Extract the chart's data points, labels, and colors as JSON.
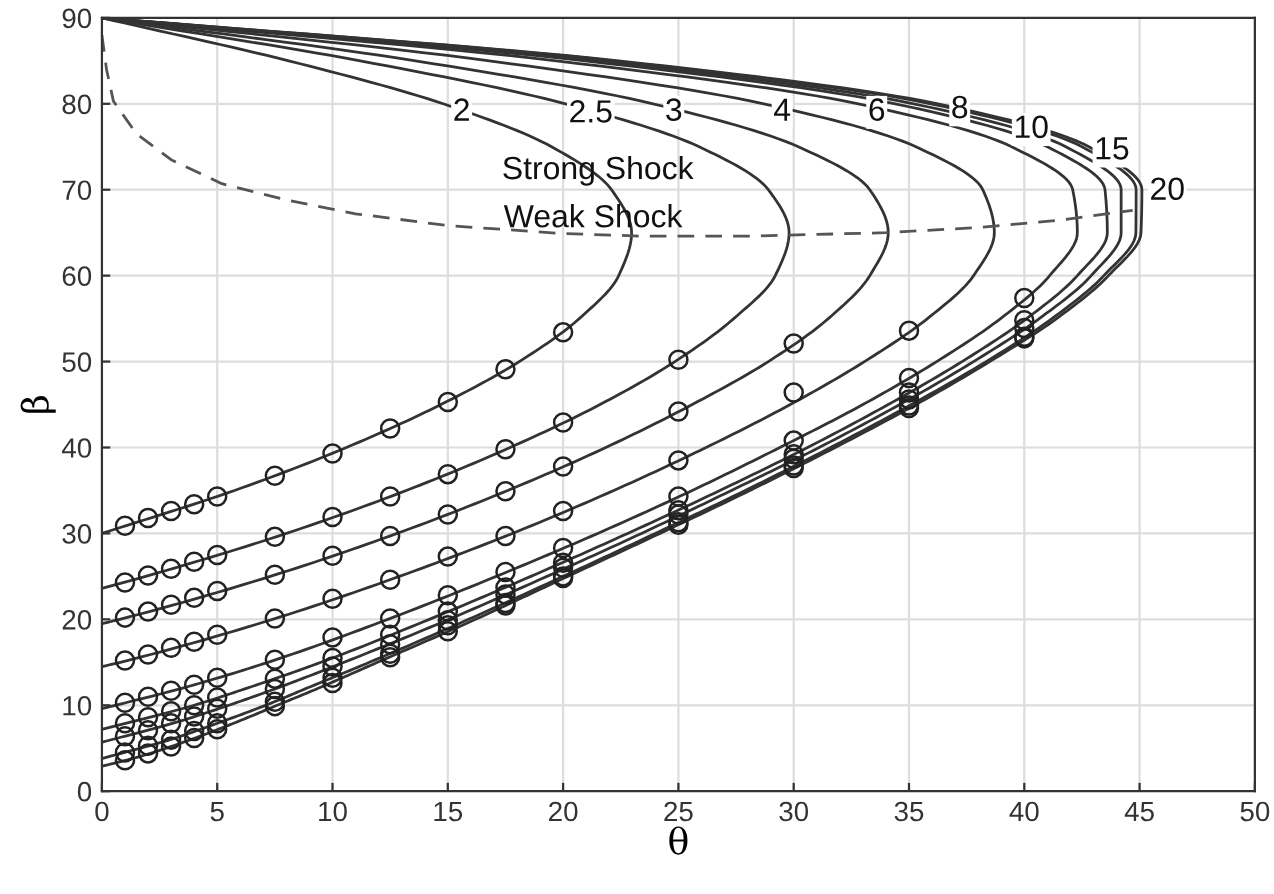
{
  "chart_data": {
    "type": "line",
    "xlabel": "θ",
    "ylabel": "β",
    "xlim": [
      0,
      50
    ],
    "ylim": [
      0,
      90
    ],
    "xticks": [
      0,
      5,
      10,
      15,
      20,
      25,
      30,
      35,
      40,
      45,
      50
    ],
    "yticks": [
      0,
      10,
      20,
      30,
      40,
      50,
      60,
      70,
      80,
      90
    ],
    "grid": true,
    "legend": false,
    "series": [
      {
        "color": "#333333",
        "x": [
          0,
          5.75,
          10.6,
          14.7,
          18.1,
          20.7,
          22.41,
          22.97,
          22.1,
          19.5,
          14.8,
          8.1,
          0
        ],
        "values": [
          30,
          35,
          40,
          45,
          50,
          55,
          60,
          65,
          70,
          75,
          80,
          85,
          90
        ]
      },
      {
        "color": "#333333",
        "x": [
          0,
          1.9,
          8.0,
          13.2,
          17.7,
          21.6,
          24.85,
          27.4,
          29.2,
          29.8,
          28.9,
          25.9,
          20.1,
          11.2,
          0
        ],
        "values": [
          23.6,
          25,
          30,
          35,
          40,
          45,
          50,
          55,
          60,
          65,
          70,
          75,
          80,
          85,
          90
        ]
      },
      {
        "color": "#333333",
        "x": [
          0,
          0.77,
          7.3,
          12.8,
          17.6,
          21.85,
          25.6,
          28.9,
          31.5,
          33.3,
          34.1,
          33.3,
          30.2,
          23.9,
          13.6,
          0
        ],
        "values": [
          19.5,
          20,
          25,
          30,
          35,
          40,
          45,
          50,
          55,
          60,
          65,
          70,
          75,
          80,
          85,
          90
        ]
      },
      {
        "color": "#333333",
        "x": [
          0,
          0.8,
          7.4,
          12.9,
          17.8,
          22.2,
          26.2,
          29.85,
          33.07,
          35.8,
          37.8,
          38.7,
          38.2,
          35.3,
          28.7,
          16.8,
          0
        ],
        "values": [
          14.5,
          15,
          20,
          25,
          30,
          35,
          40,
          45,
          50,
          55,
          60,
          65,
          70,
          75,
          80,
          85,
          90
        ]
      },
      {
        "color": "#333333",
        "x": [
          0,
          3.5,
          7.2,
          12.4,
          17.1,
          21.5,
          25.6,
          29.4,
          33.0,
          36.2,
          38.97,
          41.1,
          42.3,
          42.1,
          39.45,
          32.8,
          19.7,
          0
        ],
        "values": [
          9.6,
          12,
          15,
          20,
          25,
          30,
          35,
          40,
          45,
          50,
          55,
          60,
          65,
          70,
          75,
          80,
          85,
          90
        ]
      },
      {
        "color": "#333333",
        "x": [
          0,
          4.0,
          6.3,
          9.5,
          14.2,
          18.6,
          22.8,
          26.8,
          30.6,
          34.1,
          37.3,
          40.1,
          42.3,
          43.6,
          43.5,
          41.0,
          34.4,
          20.95,
          0
        ],
        "values": [
          7.2,
          10,
          12,
          15,
          20,
          25,
          30,
          35,
          40,
          45,
          50,
          55,
          60,
          65,
          70,
          75,
          80,
          85,
          90
        ]
      },
      {
        "color": "#333333",
        "x": [
          0,
          3.2,
          5.5,
          7.6,
          10.5,
          15.05,
          19.3,
          23.4,
          27.3,
          31.1,
          34.6,
          37.8,
          40.65,
          42.9,
          44.2,
          44.2,
          41.8,
          35.2,
          21.55,
          0
        ],
        "values": [
          5.7,
          8,
          10,
          12,
          15,
          20,
          25,
          30,
          35,
          40,
          45,
          50,
          55,
          60,
          65,
          70,
          75,
          80,
          85,
          90
        ]
      },
      {
        "color": "#333333",
        "x": [
          0,
          2.96,
          5.1,
          7.1,
          8.9,
          11.6,
          15.9,
          20.0,
          24.0,
          27.9,
          31.6,
          35.1,
          38.35,
          41.2,
          43.45,
          44.84,
          44.85,
          42.5,
          35.95,
          22.2,
          0
        ],
        "values": [
          3.8,
          6,
          8,
          10,
          12,
          15,
          20,
          25,
          30,
          35,
          40,
          45,
          50,
          55,
          60,
          65,
          70,
          75,
          80,
          85,
          90
        ]
      },
      {
        "color": "#333333",
        "x": [
          0,
          1.6,
          3.85,
          5.8,
          7.6,
          9.4,
          11.95,
          16.2,
          20.2,
          24.2,
          28.1,
          31.8,
          35.3,
          38.5,
          41.4,
          43.65,
          45.06,
          45.1,
          42.8,
          36.25,
          22.4,
          0
        ],
        "values": [
          2.9,
          4,
          6,
          8,
          10,
          12,
          15,
          20,
          25,
          30,
          35,
          40,
          45,
          50,
          55,
          60,
          65,
          70,
          75,
          80,
          85,
          90
        ]
      },
      {
        "line_style": "dashed",
        "color": "#555555",
        "x": [
          0,
          0.2,
          0.5,
          1.5,
          3,
          5.2,
          8,
          11,
          15.1,
          20,
          23.4,
          28,
          34,
          38,
          41.7,
          44.7
        ],
        "values": [
          88,
          84,
          80.3,
          76.5,
          73.5,
          70.7,
          68.8,
          67.2,
          65.8,
          64.9,
          64.6,
          64.6,
          65,
          65.6,
          66.5,
          67.6
        ]
      },
      {
        "type": "scatter",
        "marker": "circle",
        "color": "#222222",
        "x": [
          1,
          2,
          3,
          4,
          5,
          7.5,
          10,
          12.5,
          15,
          17.5,
          20,
          1,
          2,
          3,
          4,
          5,
          7.5,
          10,
          12.5,
          15,
          17.5,
          20,
          25,
          1,
          2,
          3,
          4,
          5,
          7.5,
          10,
          12.5,
          15,
          17.5,
          20,
          25,
          30,
          1,
          2,
          3,
          4,
          5,
          7.5,
          10,
          12.5,
          15,
          17.5,
          20,
          25,
          30,
          35,
          1,
          2,
          3,
          4,
          5,
          7.5,
          10,
          12.5,
          15,
          17.5,
          20,
          25,
          30,
          35,
          40,
          1,
          2,
          3,
          4,
          5,
          7.5,
          10,
          12.5,
          15,
          17.5,
          20,
          25,
          30,
          35,
          40,
          1,
          2,
          3,
          4,
          5,
          7.5,
          10,
          12.5,
          15,
          17.5,
          20,
          25,
          30,
          35,
          40,
          1,
          2,
          3,
          4,
          5,
          7.5,
          10,
          12.5,
          15,
          17.5,
          20,
          25,
          30,
          35,
          40,
          1,
          2,
          3,
          4,
          5,
          7.5,
          10,
          12.5,
          15,
          17.5,
          20,
          25,
          30,
          35,
          40
        ],
        "values": [
          30.9,
          31.8,
          32.6,
          33.4,
          34.3,
          36.7,
          39.3,
          42.2,
          45.3,
          49.1,
          53.4,
          24.3,
          25.1,
          25.9,
          26.7,
          27.5,
          29.6,
          31.9,
          34.3,
          36.9,
          39.8,
          42.9,
          50.2,
          20.2,
          20.9,
          21.7,
          22.5,
          23.3,
          25.2,
          27.4,
          29.7,
          32.2,
          34.9,
          37.8,
          44.2,
          52.1,
          15.2,
          15.9,
          16.7,
          17.4,
          18.2,
          20.1,
          22.4,
          24.6,
          27.3,
          29.7,
          32.6,
          38.5,
          46.4,
          53.6,
          10.3,
          11.0,
          11.7,
          12.4,
          13.2,
          15.3,
          17.9,
          20.1,
          22.8,
          25.5,
          28.3,
          34.3,
          40.8,
          48.1,
          57.4,
          7.9,
          8.6,
          9.3,
          10.0,
          10.9,
          13.1,
          15.5,
          18.2,
          20.9,
          23.7,
          26.6,
          32.7,
          39.2,
          46.4,
          54.8,
          6.4,
          7.1,
          7.9,
          8.7,
          9.6,
          11.9,
          14.5,
          17.1,
          19.9,
          22.9,
          26.0,
          32.2,
          38.7,
          45.6,
          53.9,
          4.5,
          5.3,
          6.0,
          7.0,
          7.9,
          10.4,
          13.2,
          16.0,
          19.3,
          21.9,
          25.0,
          31.3,
          37.9,
          44.9,
          52.9,
          3.6,
          4.4,
          5.2,
          6.2,
          7.2,
          9.9,
          12.6,
          15.6,
          18.6,
          21.6,
          24.8,
          31.0,
          37.6,
          44.6,
          52.7
        ]
      }
    ],
    "annotations": [
      "2",
      "2.5",
      "3",
      "4",
      "6",
      "8",
      "10",
      "15",
      "20",
      "Strong Shock",
      "Weak Shock"
    ]
  }
}
